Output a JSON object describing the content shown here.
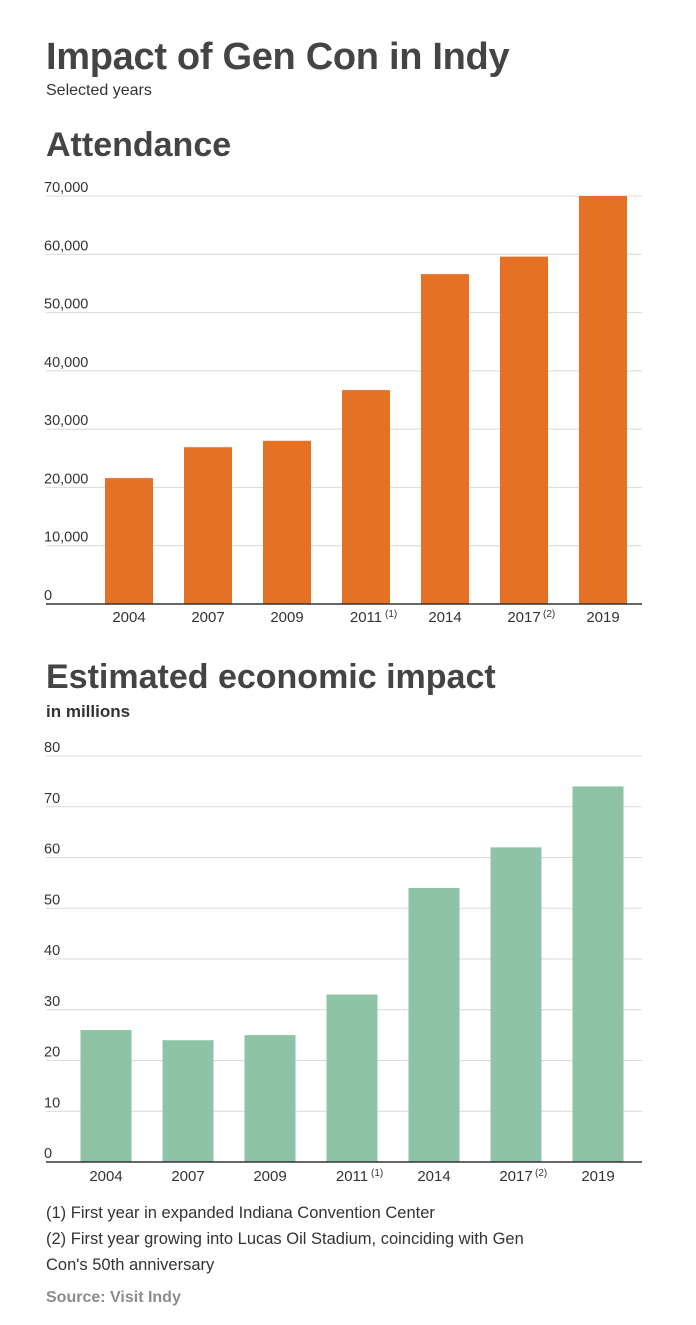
{
  "header": {
    "title": "Impact of Gen Con in Indy",
    "subtitle": "Selected years"
  },
  "chart_data": [
    {
      "type": "bar",
      "title": "Attendance",
      "subtitle": "",
      "categories": [
        "2004",
        "2007",
        "2009",
        "2011",
        "2014",
        "2017",
        "2019"
      ],
      "category_notes": [
        "",
        "",
        "",
        "(1)",
        "",
        "(2)",
        ""
      ],
      "values": [
        21600,
        26900,
        28000,
        36700,
        56600,
        59600,
        70000
      ],
      "yticks": [
        "0",
        "10,000",
        "20,000",
        "30,000",
        "40,000",
        "50,000",
        "60,000",
        "70,000"
      ],
      "ylim": [
        0,
        70000
      ],
      "color": "#e57224",
      "grid": true
    },
    {
      "type": "bar",
      "title": "Estimated economic impact",
      "subtitle": "in millions",
      "categories": [
        "2004",
        "2007",
        "2009",
        "2011",
        "2014",
        "2017",
        "2019"
      ],
      "category_notes": [
        "",
        "",
        "",
        "(1)",
        "",
        "(2)",
        ""
      ],
      "values": [
        26,
        24,
        25,
        33,
        54,
        62,
        74
      ],
      "yticks": [
        "0",
        "10",
        "20",
        "30",
        "40",
        "50",
        "60",
        "70",
        "80"
      ],
      "ylim": [
        0,
        80
      ],
      "color": "#8ec3a7",
      "grid": true
    }
  ],
  "footnotes": {
    "note1": "(1) First year in expanded Indiana Convention Center",
    "note2": "(2) First year growing into Lucas Oil Stadium, coinciding with Gen Con's 50th anniversary"
  },
  "source": "Source: Visit Indy"
}
